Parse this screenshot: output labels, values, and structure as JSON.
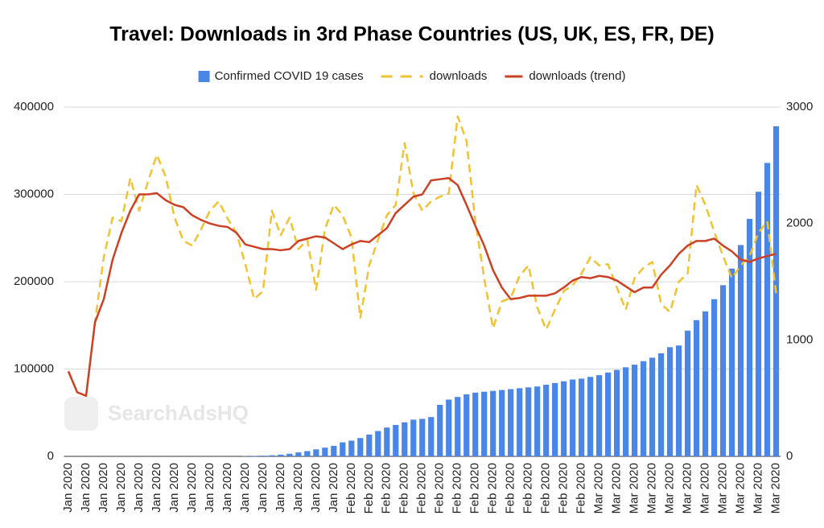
{
  "chart_data": {
    "type": "bar_line",
    "title": "Travel: Downloads in 3rd Phase Countries (US, UK, ES, FR, DE)",
    "watermark": "SearchAdsHQ",
    "categories": [
      "Jan 2020",
      null,
      "Jan 2020",
      null,
      "Jan 2020",
      null,
      "Jan 2020",
      null,
      "Jan 2020",
      null,
      "Jan 2020",
      null,
      "Jan 2020",
      null,
      "Jan 2020",
      null,
      "Jan 2020",
      null,
      "Jan 2020",
      null,
      "Jan 2020",
      null,
      "Jan 2020",
      null,
      "Jan 2020",
      null,
      "Jan 2020",
      null,
      "Jan 2020",
      null,
      "Jan 2020",
      null,
      "Feb 2020",
      null,
      "Feb 2020",
      null,
      "Feb 2020",
      null,
      "Feb 2020",
      null,
      "Feb 2020",
      null,
      "Feb 2020",
      null,
      "Feb 2020",
      null,
      "Feb 2020",
      null,
      "Feb 2020",
      null,
      "Feb 2020",
      null,
      "Feb 2020",
      null,
      "Feb 2020",
      null,
      "Feb 2020",
      null,
      "Feb 2020",
      null,
      "Mar 2020",
      null,
      "Mar 2020",
      null,
      "Mar 2020",
      null,
      "Mar 2020",
      null,
      "Mar 2020",
      null,
      "Mar 2020",
      null,
      "Mar 2020",
      null,
      "Mar 2020",
      null,
      "Mar 2020",
      null,
      "Mar 2020",
      null,
      "Mar 2020"
    ],
    "series": [
      {
        "name": "Confirmed COVID 19 cases",
        "color": "#4a86e8",
        "kind": "bar",
        "axis": "y",
        "values": [
          0,
          0,
          0,
          0,
          0,
          0,
          0,
          0,
          0,
          0,
          0,
          0,
          0,
          0,
          0,
          0,
          0,
          0,
          0,
          0,
          300,
          500,
          800,
          1200,
          2000,
          3000,
          4500,
          6000,
          8000,
          10000,
          12000,
          16000,
          18000,
          21000,
          25000,
          29000,
          33000,
          36000,
          39000,
          42000,
          43000,
          45000,
          59000,
          65000,
          68000,
          71000,
          73000,
          74000,
          75000,
          76000,
          77000,
          78000,
          79000,
          80000,
          82000,
          84000,
          86000,
          88000,
          89000,
          91000,
          93000,
          96000,
          99000,
          102000,
          105000,
          109000,
          113000,
          118000,
          125000,
          127000,
          144000,
          156000,
          166000,
          180000,
          196000,
          215000,
          242000,
          272000,
          303000,
          336000,
          378000
        ]
      },
      {
        "name": "downloads",
        "color": "#f1c232",
        "kind": "line",
        "dashed": true,
        "axis": "y2",
        "values": [
          730,
          550,
          520,
          1150,
          1710,
          2050,
          2020,
          2390,
          2110,
          2360,
          2590,
          2400,
          2050,
          1850,
          1810,
          1950,
          2110,
          2190,
          2040,
          1920,
          1650,
          1350,
          1420,
          2110,
          1900,
          2050,
          1780,
          1860,
          1430,
          1950,
          2160,
          2070,
          1880,
          1190,
          1640,
          1860,
          2070,
          2160,
          2690,
          2260,
          2110,
          2190,
          2230,
          2260,
          2920,
          2710,
          2020,
          1530,
          1100,
          1330,
          1360,
          1550,
          1640,
          1280,
          1090,
          1260,
          1420,
          1470,
          1570,
          1710,
          1640,
          1650,
          1450,
          1260,
          1530,
          1620,
          1670,
          1310,
          1240,
          1500,
          1570,
          2330,
          2160,
          1930,
          1720,
          1530,
          1640,
          1720,
          1920,
          2020,
          1400
        ]
      },
      {
        "name": "downloads (trend)",
        "color": "#cc4125",
        "kind": "line",
        "dashed": false,
        "axis": "y2",
        "values": [
          730,
          550,
          520,
          1150,
          1350,
          1690,
          1920,
          2110,
          2250,
          2250,
          2260,
          2200,
          2160,
          2140,
          2070,
          2030,
          2000,
          1980,
          1970,
          1920,
          1820,
          1800,
          1780,
          1780,
          1770,
          1780,
          1850,
          1870,
          1890,
          1880,
          1830,
          1780,
          1820,
          1850,
          1840,
          1900,
          1960,
          2090,
          2160,
          2230,
          2250,
          2370,
          2380,
          2390,
          2330,
          2160,
          1980,
          1810,
          1600,
          1450,
          1350,
          1360,
          1380,
          1380,
          1380,
          1400,
          1450,
          1510,
          1540,
          1530,
          1550,
          1540,
          1510,
          1460,
          1410,
          1450,
          1450,
          1560,
          1640,
          1740,
          1810,
          1850,
          1850,
          1870,
          1810,
          1760,
          1690,
          1670,
          1700,
          1720,
          1740
        ]
      }
    ],
    "ylim": [
      0,
      400000
    ],
    "yticks": [
      0,
      100000,
      200000,
      300000,
      400000
    ],
    "y2lim": [
      0,
      3000
    ],
    "y2ticks": [
      0,
      1000,
      2000,
      3000
    ],
    "grid": true,
    "legend": "top"
  }
}
